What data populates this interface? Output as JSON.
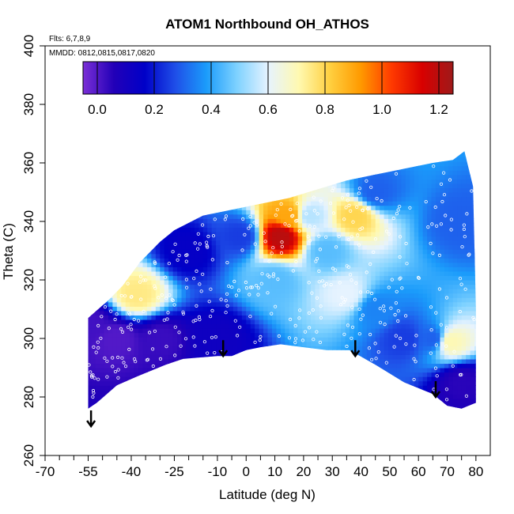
{
  "chart_data": {
    "type": "heatmap",
    "title": "ATOM1 Northbound OH_ATHOS",
    "xlabel": "Latitude (deg N)",
    "ylabel": "Theta (C)",
    "xlim": [
      -70,
      85
    ],
    "ylim": [
      260,
      400
    ],
    "x_ticks": [
      -70,
      -55,
      -40,
      -25,
      -10,
      0,
      10,
      20,
      30,
      40,
      50,
      60,
      70,
      80
    ],
    "x_tick_labels": [
      "-70",
      "-55",
      "-40",
      "-25",
      "-10",
      "0",
      "10",
      "20",
      "30",
      "40",
      "50",
      "60",
      "70",
      "80"
    ],
    "x_minor_ticks": [
      -65,
      -60,
      -50,
      -45,
      -35,
      -30,
      -20,
      -15,
      -5,
      5,
      15,
      25,
      35,
      45,
      55,
      65,
      75
    ],
    "y_ticks": [
      260,
      280,
      300,
      320,
      340,
      360,
      380,
      400
    ],
    "y_tick_labels": [
      "260",
      "280",
      "300",
      "320",
      "340",
      "360",
      "380",
      "400"
    ],
    "annotations": {
      "flights": "Flts: 6,7,8,9",
      "dates": "MMDD: 0812,0815,0817,0820"
    },
    "colorbar": {
      "range": [
        -0.05,
        1.25
      ],
      "ticks": [
        0.0,
        0.2,
        0.4,
        0.6,
        0.8,
        1.0,
        1.2
      ],
      "tick_labels": [
        "0.0",
        "0.2",
        "0.4",
        "0.6",
        "0.8",
        "1.0",
        "1.2"
      ],
      "colors": [
        "#7b2fd6",
        "#2200b8",
        "#0000c8",
        "#1f4fe8",
        "#1b9cfb",
        "#7fd2ff",
        "#e6f3ff",
        "#fff9b0",
        "#ffd040",
        "#ff9a00",
        "#ff3a00",
        "#d80000",
        "#9e1a1a"
      ]
    },
    "upper_boundary": [
      [
        -55,
        307
      ],
      [
        -48,
        313
      ],
      [
        -43,
        318
      ],
      [
        -37,
        326
      ],
      [
        -30,
        333
      ],
      [
        -25,
        337
      ],
      [
        -15,
        342
      ],
      [
        -5,
        344
      ],
      [
        5,
        346
      ],
      [
        15,
        348
      ],
      [
        25,
        351
      ],
      [
        35,
        354
      ],
      [
        45,
        356
      ],
      [
        55,
        358
      ],
      [
        65,
        360
      ],
      [
        72,
        361
      ],
      [
        76,
        364
      ],
      [
        79,
        352
      ],
      [
        80,
        310
      ]
    ],
    "lower_boundary": [
      [
        -55,
        276
      ],
      [
        -52,
        278
      ],
      [
        -45,
        284
      ],
      [
        -38,
        287
      ],
      [
        -28,
        291
      ],
      [
        -22,
        293
      ],
      [
        -10,
        294
      ],
      [
        -5,
        294
      ],
      [
        0,
        296
      ],
      [
        5,
        297
      ],
      [
        12,
        298
      ],
      [
        20,
        297
      ],
      [
        28,
        296
      ],
      [
        36,
        296
      ],
      [
        45,
        291
      ],
      [
        55,
        285
      ],
      [
        65,
        281
      ],
      [
        70,
        277
      ],
      [
        75,
        276
      ],
      [
        80,
        278
      ]
    ],
    "field_anchors": [
      {
        "lat": -55,
        "theta": 305,
        "value": 0.02
      },
      {
        "lat": -45,
        "theta": 300,
        "value": 0.0
      },
      {
        "lat": -38,
        "theta": 315,
        "value": 0.75
      },
      {
        "lat": -30,
        "theta": 300,
        "value": 0.03
      },
      {
        "lat": -20,
        "theta": 330,
        "value": 0.15
      },
      {
        "lat": -10,
        "theta": 300,
        "value": 0.12
      },
      {
        "lat": -2,
        "theta": 335,
        "value": 0.25
      },
      {
        "lat": 10,
        "theta": 320,
        "value": 0.45
      },
      {
        "lat": 15,
        "theta": 342,
        "value": 0.9
      },
      {
        "lat": 12,
        "theta": 335,
        "value": 1.2
      },
      {
        "lat": 22,
        "theta": 342,
        "value": 0.55
      },
      {
        "lat": 28,
        "theta": 330,
        "value": 0.45
      },
      {
        "lat": 35,
        "theta": 315,
        "value": 0.6
      },
      {
        "lat": 38,
        "theta": 342,
        "value": 0.8
      },
      {
        "lat": 45,
        "theta": 310,
        "value": 0.35
      },
      {
        "lat": 55,
        "theta": 300,
        "value": 0.25
      },
      {
        "lat": 65,
        "theta": 300,
        "value": 0.3
      },
      {
        "lat": 71,
        "theta": 299,
        "value": 0.7
      },
      {
        "lat": 75,
        "theta": 285,
        "value": 0.05
      },
      {
        "lat": 75,
        "theta": 340,
        "value": 0.3
      },
      {
        "lat": 45,
        "theta": 350,
        "value": 0.3
      }
    ],
    "arrows": [
      {
        "lat": -54,
        "theta": 270
      },
      {
        "lat": -8,
        "theta": 294
      },
      {
        "lat": 38,
        "theta": 294
      },
      {
        "lat": 66,
        "theta": 280
      }
    ],
    "sample_point_count": 400
  }
}
